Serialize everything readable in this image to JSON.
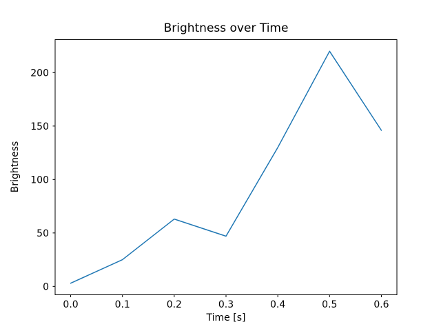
{
  "chart_data": {
    "type": "line",
    "title": "Brightness over Time",
    "xlabel": "Time [s]",
    "ylabel": "Brightness",
    "x": [
      0.0,
      0.1,
      0.2,
      0.3,
      0.4,
      0.5,
      0.6
    ],
    "values": [
      3,
      25,
      63,
      47,
      130,
      220,
      146
    ],
    "x_ticks": [
      0.0,
      0.1,
      0.2,
      0.3,
      0.4,
      0.5,
      0.6
    ],
    "x_tick_labels": [
      "0.0",
      "0.1",
      "0.2",
      "0.3",
      "0.4",
      "0.5",
      "0.6"
    ],
    "y_ticks": [
      0,
      50,
      100,
      150,
      200
    ],
    "y_tick_labels": [
      "0",
      "50",
      "100",
      "150",
      "200"
    ],
    "xlim": [
      -0.03,
      0.63
    ],
    "ylim": [
      -7.85,
      230.85
    ],
    "grid": false,
    "legend_position": "none",
    "line_color": "#1f77b4",
    "axis_color": "#000000",
    "background_color": "#ffffff"
  }
}
